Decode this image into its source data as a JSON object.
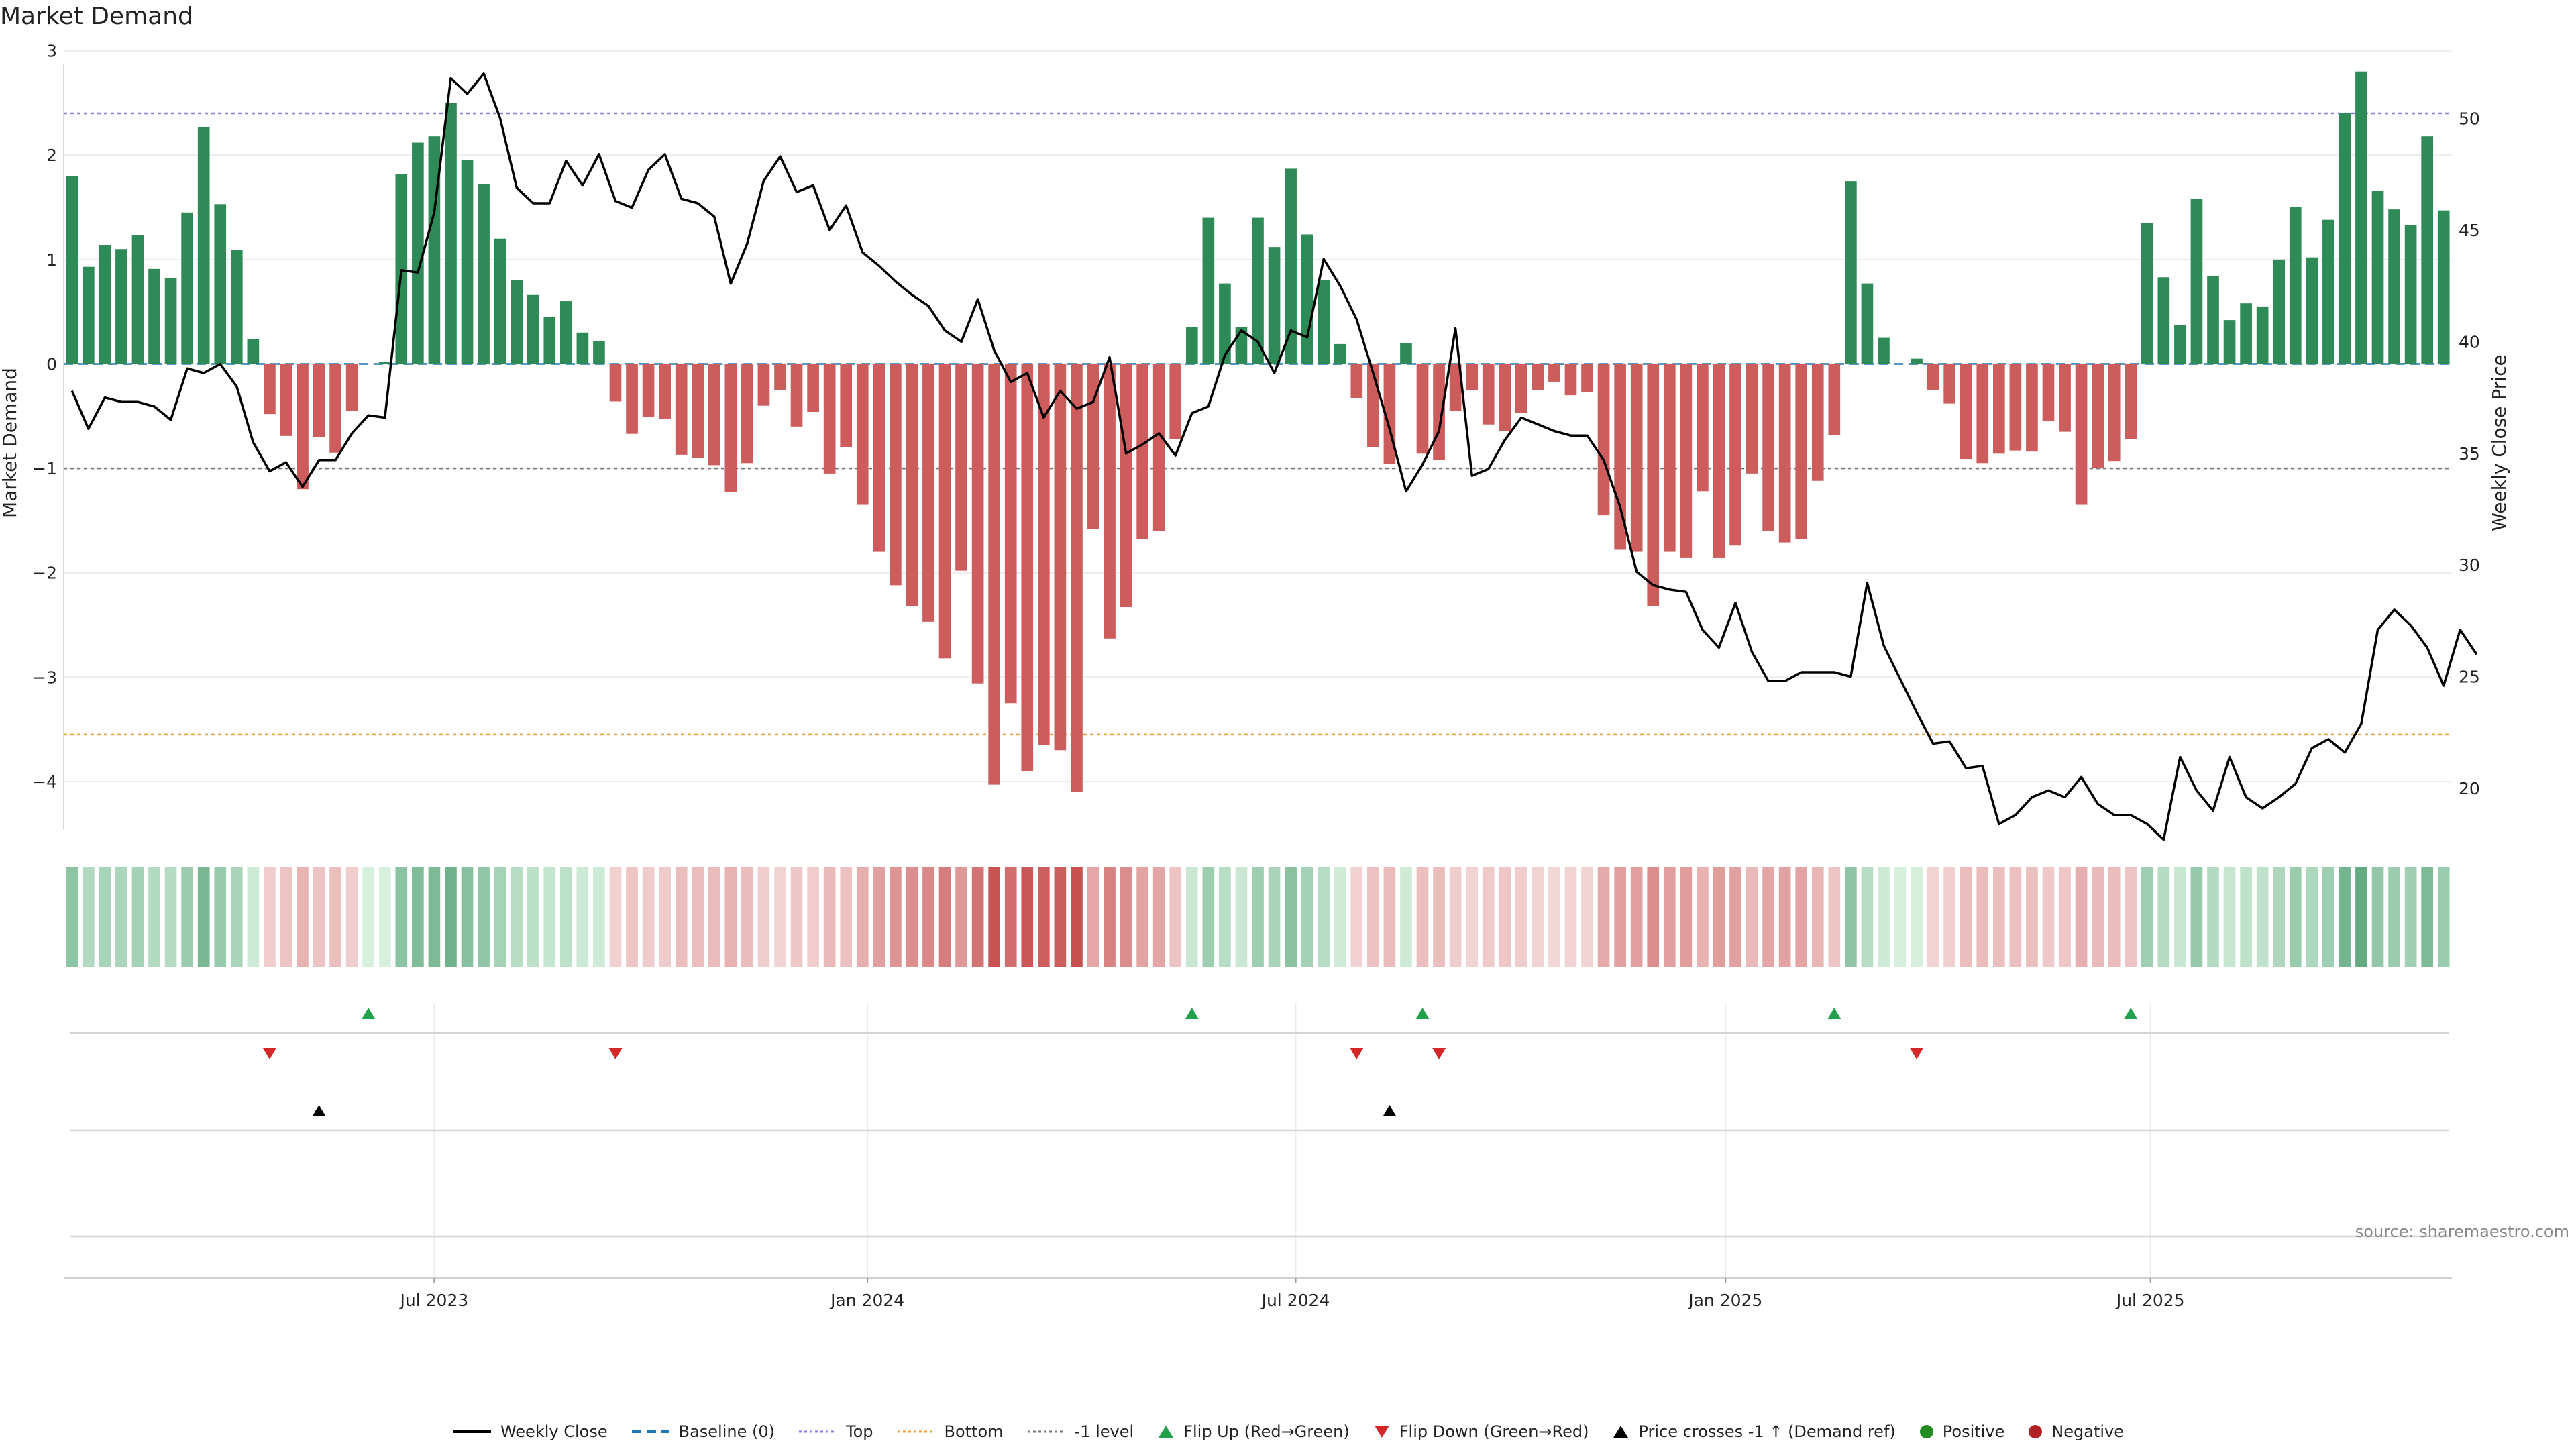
{
  "title": "Market Demand",
  "source": "source: sharemaestro.com",
  "colors": {
    "positive": "#2e8b57",
    "negative": "#cd5c5c",
    "price": "#000000",
    "top": "#8a7fd8",
    "bottom": "#e8a13a",
    "minus1": "#777777",
    "baseline": "#1f77b4",
    "flip_up": "#22a04b",
    "flip_down": "#d62728",
    "cross": "#000000"
  },
  "chart_data": {
    "type": "bar",
    "title": "Market Demand",
    "ylabel": "Market Demand",
    "y2label": "Weekly Close Price",
    "ylim": [
      -4.45,
      3.1
    ],
    "y2lim": [
      18.2,
      53.5
    ],
    "yticks": [
      3,
      2,
      1,
      0,
      -1,
      -2,
      -3,
      -4
    ],
    "y2ticks": [
      50,
      45,
      40,
      35,
      30,
      25,
      20
    ],
    "x_tick_labels": [
      {
        "label": "Jul 2023",
        "index": 22
      },
      {
        "label": "Jan 2024",
        "index": 48.3
      },
      {
        "label": "Jul 2024",
        "index": 74.3
      },
      {
        "label": "Jan 2025",
        "index": 100.4
      },
      {
        "label": "Jul 2025",
        "index": 126.2
      }
    ],
    "reference_lines": {
      "top": 2.4,
      "bottom": -3.55,
      "minus_one": -1.0,
      "baseline": 0
    },
    "demand": [
      1.8,
      0.93,
      1.14,
      1.1,
      1.23,
      0.91,
      0.82,
      1.45,
      2.27,
      1.53,
      1.09,
      0.24,
      -0.48,
      -0.69,
      -1.2,
      -0.7,
      -0.85,
      -0.45,
      0,
      0.02,
      1.82,
      2.12,
      2.18,
      2.5,
      1.95,
      1.72,
      1.2,
      0.8,
      0.66,
      0.45,
      0.6,
      0.3,
      0.22,
      -0.36,
      -0.67,
      -0.51,
      -0.53,
      -0.87,
      -0.9,
      -0.97,
      -1.23,
      -0.95,
      -0.4,
      -0.25,
      -0.6,
      -0.46,
      -1.05,
      -0.8,
      -1.35,
      -1.8,
      -2.12,
      -2.32,
      -2.47,
      -2.82,
      -1.98,
      -3.06,
      -4.03,
      -3.25,
      -3.9,
      -3.65,
      -3.7,
      -4.1,
      -1.58,
      -2.63,
      -2.33,
      -1.68,
      -1.6,
      -0.72,
      0.35,
      1.4,
      0.77,
      0.35,
      1.4,
      1.12,
      1.87,
      1.24,
      0.8,
      0.19,
      -0.33,
      -0.8,
      -0.96,
      0.2,
      -0.86,
      -0.92,
      -0.45,
      -0.25,
      -0.58,
      -0.64,
      -0.47,
      -0.25,
      -0.17,
      -0.3,
      -0.27,
      -1.45,
      -1.78,
      -1.8,
      -2.32,
      -1.8,
      -1.86,
      -1.22,
      -1.86,
      -1.74,
      -1.05,
      -1.6,
      -1.71,
      -1.68,
      -1.12,
      -0.68,
      1.75,
      0.77,
      0.25,
      0,
      0.05,
      -0.25,
      -0.38,
      -0.91,
      -0.95,
      -0.86,
      -0.83,
      -0.84,
      -0.55,
      -0.65,
      -1.35,
      -1.0,
      -0.93,
      -0.72,
      1.35,
      0.83,
      0.37,
      1.58,
      0.84,
      0.42,
      0.58,
      0.55,
      1.0,
      1.5,
      1.02,
      1.38,
      2.4,
      2.8,
      1.66,
      1.48,
      1.33,
      2.18,
      1.47
    ],
    "weekly_close": [
      37.8,
      36.1,
      37.5,
      37.3,
      37.3,
      37.1,
      36.5,
      38.8,
      38.6,
      39.0,
      38.0,
      35.5,
      34.2,
      34.6,
      33.5,
      34.7,
      34.7,
      35.9,
      36.7,
      36.6,
      43.2,
      43.1,
      45.8,
      51.8,
      51.1,
      52.0,
      50.0,
      46.9,
      46.2,
      46.2,
      48.1,
      47.0,
      48.4,
      46.3,
      46.0,
      47.7,
      48.4,
      46.4,
      46.2,
      45.6,
      42.6,
      44.4,
      47.2,
      48.3,
      46.7,
      47.0,
      45.0,
      46.1,
      44.0,
      43.4,
      42.7,
      42.1,
      41.6,
      40.5,
      40.0,
      41.9,
      39.6,
      38.2,
      38.6,
      36.6,
      37.8,
      37.0,
      37.3,
      39.3,
      35.0,
      35.4,
      35.9,
      34.9,
      36.8,
      37.1,
      39.4,
      40.5,
      40.0,
      38.6,
      40.5,
      40.2,
      43.7,
      42.5,
      41.0,
      38.6,
      36.1,
      33.3,
      34.5,
      36.0,
      40.6,
      34.0,
      34.3,
      35.6,
      36.6,
      36.3,
      36.0,
      35.8,
      35.8,
      34.7,
      32.6,
      29.7,
      29.1,
      28.9,
      28.8,
      27.1,
      26.3,
      28.3,
      26.1,
      24.8,
      24.8,
      25.2,
      25.2,
      25.2,
      25.0,
      29.2,
      26.4,
      24.9,
      23.4,
      22.0,
      22.1,
      20.9,
      21.0,
      18.4,
      18.8,
      19.6,
      19.9,
      19.6,
      20.5,
      19.3,
      18.8,
      18.8,
      18.4,
      17.7,
      21.4,
      19.9,
      19.0,
      21.4,
      19.6,
      19.1,
      19.6,
      20.2,
      21.8,
      22.2,
      21.6,
      22.9,
      27.1,
      28.0,
      27.3,
      26.3,
      24.6,
      27.1,
      26.0
    ],
    "flip_up_indices": [
      18,
      68,
      82,
      107,
      125
    ],
    "flip_down_indices": [
      12,
      33,
      78,
      83,
      112
    ],
    "price_cross_indices": [
      15,
      80
    ],
    "legend": [
      "Weekly Close",
      "Baseline (0)",
      "Top",
      "Bottom",
      "-1 level",
      "Flip Up (Red→Green)",
      "Flip Down (Green→Red)",
      "Price crosses -1 ↑ (Demand ref)",
      "Positive",
      "Negative"
    ]
  }
}
